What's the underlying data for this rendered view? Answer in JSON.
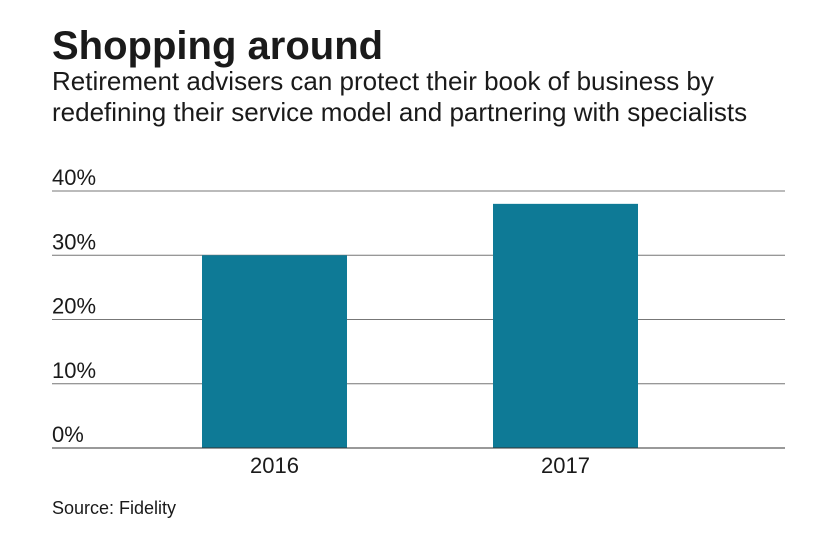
{
  "header": {
    "title": "Shopping around",
    "subtitle": "Retirement advisers can protect their book of business by redefining their service model and partnering with specialists"
  },
  "footer": {
    "source": "Source: Fidelity"
  },
  "colors": {
    "bar": "#0e7a96",
    "gridline": "#777777",
    "text": "#1a1a1a"
  },
  "chart_data": {
    "type": "bar",
    "title": "Shopping around",
    "subtitle": "Retirement advisers can protect their book of business by redefining their service model and partnering with specialists",
    "categories": [
      "2016",
      "2017"
    ],
    "values": [
      30,
      38
    ],
    "ylim": [
      0,
      40
    ],
    "yticks": [
      0,
      10,
      20,
      30,
      40
    ],
    "ytick_labels": [
      "0%",
      "10%",
      "20%",
      "30%",
      "40%"
    ],
    "xlabel": "",
    "ylabel": "",
    "grid": true,
    "legend": "none"
  }
}
